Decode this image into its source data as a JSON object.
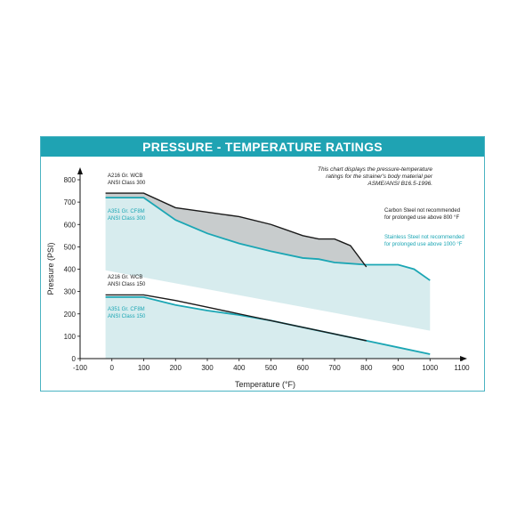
{
  "banner_title": "PRESSURE - TEMPERATURE RATINGS",
  "colors": {
    "banner": "#1fa3b3",
    "carbon": "#1a1a1a",
    "stainless": "#1ba6b4",
    "gray_fill": "#c8cccd",
    "light_fill": "#d7ecee"
  },
  "chart_data": {
    "type": "line",
    "xlabel": "Temperature (°F)",
    "ylabel": "Pressure (PSI)",
    "xlim": [
      -100,
      1100
    ],
    "ylim": [
      0,
      800
    ],
    "x_ticks": [
      "-100",
      "0",
      "100",
      "200",
      "300",
      "400",
      "500",
      "600",
      "700",
      "800",
      "900",
      "1000",
      "1100"
    ],
    "y_ticks": [
      "0",
      "100",
      "200",
      "300",
      "400",
      "500",
      "600",
      "700",
      "800"
    ],
    "series": [
      {
        "name": "A216 Gr. WCB ANSI Class 300",
        "label_line1": "A216 Gr. WCB",
        "label_line2": "ANSI Class 300",
        "color": "carbon",
        "x": [
          -20,
          100,
          200,
          300,
          400,
          500,
          600,
          650,
          700,
          750,
          800
        ],
        "y": [
          740,
          740,
          675,
          655,
          635,
          600,
          550,
          535,
          535,
          505,
          410
        ]
      },
      {
        "name": "A351 Gr. CF8M ANSI Class 300",
        "label_line1": "A351 Gr. CF8M",
        "label_line2": "ANSI Class 300",
        "color": "stainless",
        "x": [
          -20,
          100,
          200,
          300,
          400,
          500,
          600,
          650,
          700,
          800,
          900,
          950,
          1000
        ],
        "y": [
          720,
          720,
          620,
          560,
          515,
          480,
          450,
          445,
          430,
          420,
          420,
          400,
          350
        ]
      },
      {
        "name": "A216 Gr. WCB ANSI Class 150",
        "label_line1": "A216 Gr. WCB",
        "label_line2": "ANSI Class 150",
        "color": "carbon",
        "x": [
          -20,
          100,
          200,
          300,
          400,
          500,
          600,
          700,
          800
        ],
        "y": [
          285,
          285,
          260,
          230,
          200,
          170,
          140,
          110,
          80
        ]
      },
      {
        "name": "A351 Gr. CF8M ANSI Class 150",
        "label_line1": "A351 Gr. CF8M",
        "label_line2": "ANSI Class 150",
        "color": "stainless",
        "x": [
          -20,
          100,
          200,
          300,
          400,
          500,
          600,
          700,
          800,
          900,
          1000
        ],
        "y": [
          275,
          275,
          240,
          215,
          195,
          170,
          140,
          110,
          80,
          50,
          20
        ]
      }
    ],
    "annotations": {
      "intro": [
        "This chart displays the pressure-temperature",
        "ratings for the strainer's body material per",
        "ASME/ANSI B16.5-1996."
      ],
      "carbon_note": [
        "Carbon Steel not recommended",
        "for prolonged use above 800 °F"
      ],
      "stainless_note": [
        "Stainless Steel not recommended",
        "for prolonged use above 1000 °F"
      ]
    },
    "grid": false,
    "legend": "inline"
  }
}
